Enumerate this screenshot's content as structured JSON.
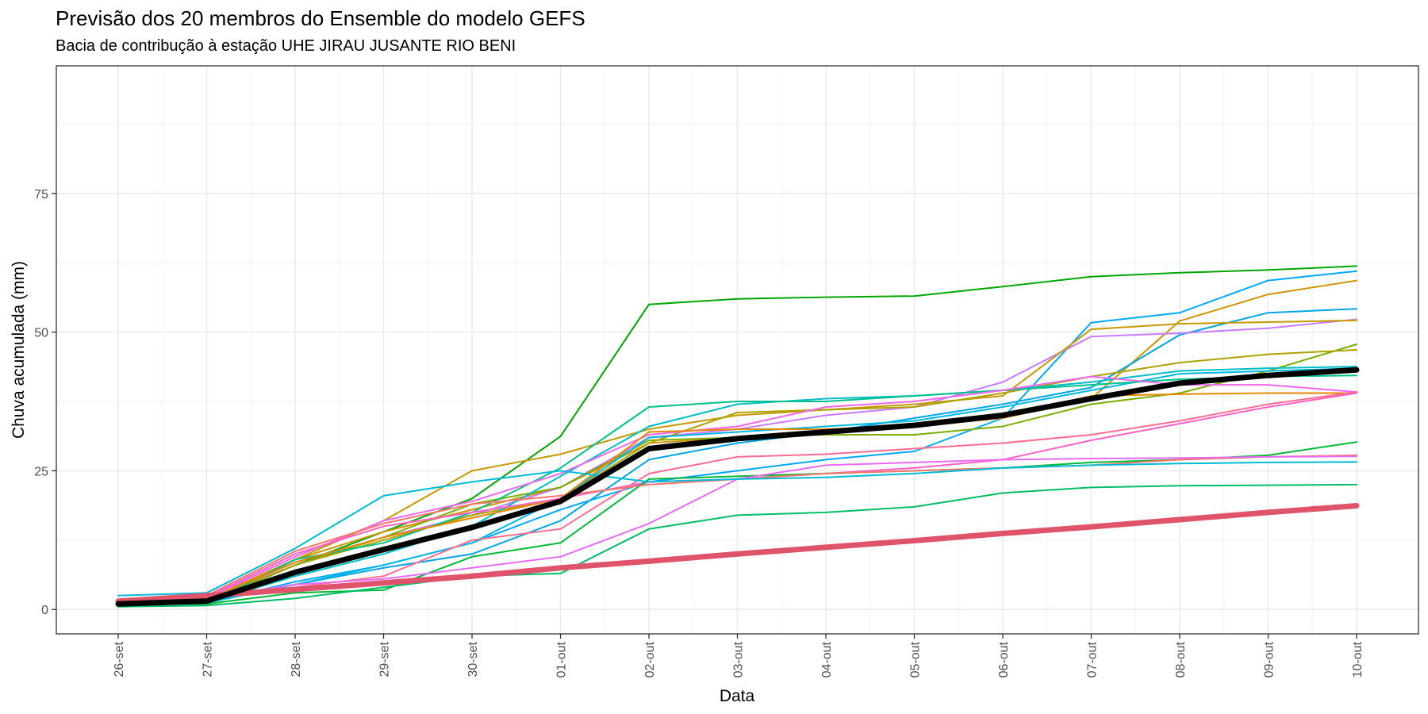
{
  "chart_data": {
    "type": "line",
    "title": "Previsão dos 20 membros do Ensemble do modelo GEFS",
    "subtitle": "Bacia de contribução à estação UHE JIRAU JUSANTE RIO BENI",
    "xlabel": "Data",
    "ylabel": "Chuva acumulada (mm)",
    "categories": [
      "26-set",
      "27-set",
      "28-set",
      "29-set",
      "30-set",
      "01-out",
      "02-out",
      "03-out",
      "04-out",
      "05-out",
      "06-out",
      "07-out",
      "08-out",
      "09-out",
      "10-out"
    ],
    "y_ticks": [
      0,
      25,
      50,
      75
    ],
    "ylim": [
      -4.4,
      98
    ],
    "grid": true,
    "legend": "none",
    "series": [
      {
        "color": "#00A600",
        "width": 2,
        "values": [
          1.0,
          1.2,
          8.0,
          14.0,
          20.0,
          31.2,
          55.0,
          56.0,
          56.3,
          56.5,
          58.2,
          60.0,
          60.7,
          61.2,
          61.9
        ]
      },
      {
        "color": "#00A9FF",
        "width": 2,
        "values": [
          1.0,
          1.2,
          5.0,
          8.0,
          12.0,
          18.0,
          23.0,
          25.0,
          27.0,
          28.5,
          34.5,
          51.7,
          53.5,
          59.3,
          61.0
        ]
      },
      {
        "color": "#CD9600",
        "width": 2,
        "values": [
          1.0,
          1.5,
          9.0,
          14.0,
          18.0,
          22.0,
          30.0,
          31.0,
          32.0,
          33.0,
          34.5,
          38.0,
          52.0,
          56.8,
          59.3
        ]
      },
      {
        "color": "#00A5E6",
        "width": 2,
        "values": [
          1.0,
          1.2,
          4.5,
          7.5,
          10.0,
          16.0,
          27.0,
          30.0,
          32.0,
          34.5,
          37.0,
          40.0,
          49.5,
          53.5,
          54.2
        ]
      },
      {
        "color": "#C77CFF",
        "width": 2,
        "values": [
          1.0,
          1.5,
          8.5,
          13.0,
          17.0,
          22.0,
          31.0,
          32.5,
          35.0,
          36.5,
          41.0,
          49.2,
          49.8,
          50.7,
          52.3
        ]
      },
      {
        "color": "#C49A00",
        "width": 2,
        "values": [
          1.0,
          1.8,
          9.0,
          16.0,
          25.0,
          28.0,
          32.5,
          35.0,
          36.0,
          37.0,
          38.5,
          50.5,
          51.5,
          51.8,
          52.1
        ]
      },
      {
        "color": "#7CAE00",
        "width": 2,
        "values": [
          1.0,
          1.5,
          8.0,
          13.0,
          19.0,
          22.0,
          30.5,
          31.0,
          31.5,
          31.5,
          33.0,
          37.0,
          39.0,
          43.0,
          47.8
        ]
      },
      {
        "color": "#AEA200",
        "width": 2,
        "values": [
          1.0,
          1.5,
          8.0,
          12.5,
          17.0,
          20.0,
          30.0,
          35.5,
          36.0,
          36.5,
          39.0,
          42.0,
          44.5,
          46.0,
          46.8
        ]
      },
      {
        "color": "#00BFC4",
        "width": 2,
        "values": [
          1.0,
          1.2,
          6.0,
          10.0,
          15.0,
          24.0,
          33.0,
          37.0,
          38.0,
          38.5,
          39.5,
          41.0,
          43.0,
          43.5,
          43.8
        ]
      },
      {
        "color": "#00B9E3",
        "width": 2,
        "values": [
          1.0,
          1.2,
          4.5,
          8.0,
          12.0,
          20.0,
          31.0,
          32.0,
          33.0,
          34.0,
          36.5,
          39.5,
          42.5,
          43.0,
          43.5
        ]
      },
      {
        "color": "#00C08B",
        "width": 2,
        "values": [
          1.0,
          1.0,
          9.0,
          12.0,
          17.5,
          25.5,
          36.5,
          37.5,
          37.5,
          38.5,
          39.5,
          40.5,
          41.5,
          42.0,
          42.2
        ]
      },
      {
        "color": "#ED68ED",
        "width": 2,
        "values": [
          1.0,
          2.0,
          9.5,
          16.0,
          19.5,
          24.5,
          31.5,
          33.0,
          36.5,
          37.5,
          39.5,
          42.0,
          40.5,
          40.5,
          39.2
        ]
      },
      {
        "color": "#E58700",
        "width": 2,
        "values": [
          1.0,
          1.8,
          8.5,
          13.0,
          16.5,
          20.0,
          32.0,
          32.5,
          32.5,
          33.0,
          34.5,
          38.5,
          38.8,
          39.0,
          39.0
        ]
      },
      {
        "color": "#FF61C3",
        "width": 2,
        "values": [
          1.0,
          2.2,
          10.0,
          15.0,
          17.5,
          20.0,
          23.0,
          23.5,
          24.5,
          25.5,
          27.0,
          30.5,
          33.5,
          36.5,
          39.0
        ]
      },
      {
        "color": "#00BA38",
        "width": 2,
        "values": [
          1.0,
          1.0,
          3.0,
          3.5,
          9.5,
          12.0,
          23.5,
          24.0,
          24.5,
          25.0,
          25.5,
          26.5,
          27.0,
          27.8,
          30.2
        ]
      },
      {
        "color": "#FF6C91",
        "width": 2,
        "values": [
          1.0,
          2.0,
          4.0,
          6.0,
          12.5,
          14.5,
          24.5,
          27.5,
          28.0,
          29.0,
          30.0,
          31.5,
          34.0,
          37.0,
          39.2
        ]
      },
      {
        "color": "#F8766D",
        "width": 2,
        "values": [
          1.0,
          2.5,
          10.5,
          15.5,
          19.0,
          20.5,
          22.5,
          23.5,
          24.5,
          25.0,
          25.5,
          26.0,
          27.0,
          27.5,
          27.8
        ]
      },
      {
        "color": "#E76BF3",
        "width": 2,
        "values": [
          1.0,
          2.0,
          4.5,
          5.5,
          7.5,
          9.5,
          15.5,
          23.5,
          26.0,
          26.5,
          27.0,
          27.2,
          27.3,
          27.5,
          27.6
        ]
      },
      {
        "color": "#00BCD8",
        "width": 2,
        "values": [
          2.5,
          3.0,
          11.0,
          20.5,
          23.0,
          25.0,
          23.0,
          23.5,
          23.8,
          24.5,
          25.5,
          26.0,
          26.3,
          26.5,
          26.6
        ]
      },
      {
        "color": "#00BE67",
        "width": 2,
        "values": [
          0.5,
          0.7,
          2.0,
          4.0,
          6.0,
          6.5,
          14.5,
          17.0,
          17.5,
          18.5,
          21.0,
          22.0,
          22.3,
          22.4,
          22.5
        ]
      },
      {
        "color": "#DF536B",
        "width": 7,
        "values": [
          1.5,
          2.5,
          3.6,
          4.8,
          6.0,
          7.5,
          8.7,
          10.0,
          11.2,
          12.4,
          13.7,
          14.9,
          16.2,
          17.5,
          18.7
        ]
      },
      {
        "color": "#000000",
        "width": 7,
        "values": [
          1.0,
          1.5,
          6.7,
          10.8,
          14.8,
          19.5,
          29.0,
          30.8,
          32.0,
          33.2,
          35.0,
          38.0,
          40.8,
          42.2,
          43.2
        ]
      }
    ]
  }
}
